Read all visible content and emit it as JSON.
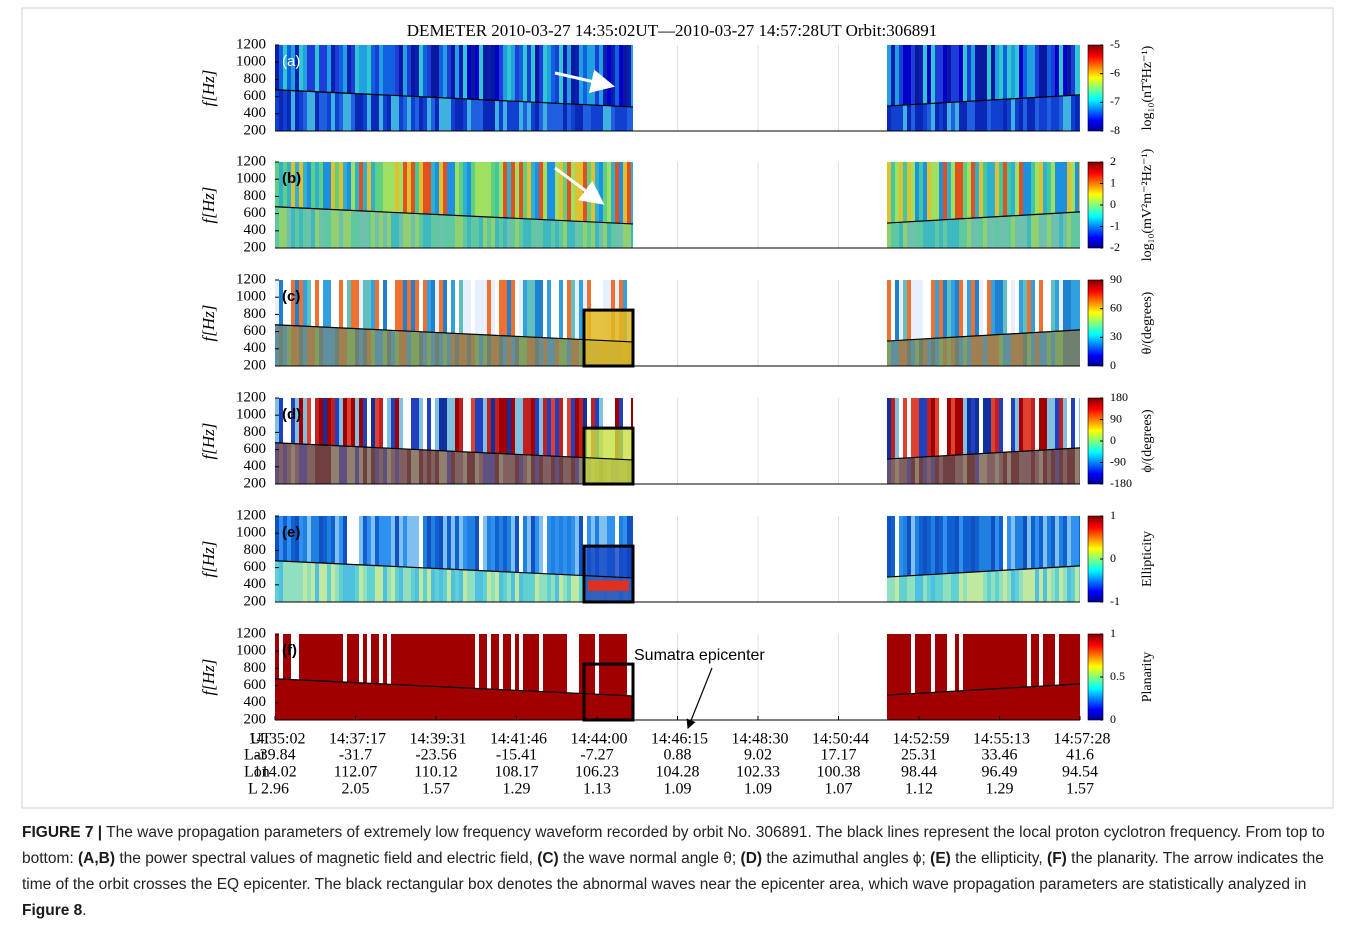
{
  "title": "DEMETER 2010-03-27 14:35:02UT—2010-03-27 14:57:28UT Orbit:306891",
  "y_axis": {
    "label": "f[Hz]",
    "ticks": [
      200,
      400,
      600,
      800,
      1000,
      1200
    ]
  },
  "panels": [
    {
      "label": "(a)",
      "colorbar_label": "log₁₀(nT²Hz⁻¹)",
      "colorbar_ticks": [
        -5,
        -6,
        -7,
        -8
      ]
    },
    {
      "label": "(b)",
      "colorbar_label": "log₁₀(mV²m⁻²Hz⁻¹)",
      "colorbar_ticks": [
        2,
        1,
        0,
        -1,
        -2
      ]
    },
    {
      "label": "(c)",
      "colorbar_label": "θ/(degrees)",
      "colorbar_ticks": [
        90,
        60,
        30,
        0
      ]
    },
    {
      "label": "(d)",
      "colorbar_label": "ϕ/(degrees)",
      "colorbar_ticks": [
        180,
        90,
        0,
        -90,
        -180
      ]
    },
    {
      "label": "(e)",
      "colorbar_label": "Ellipticity",
      "colorbar_ticks": [
        1,
        0,
        -1
      ]
    },
    {
      "label": "(f)",
      "colorbar_label": "Planarity",
      "colorbar_ticks": [
        1,
        0.5,
        0
      ]
    }
  ],
  "annotation": "Sumatra epicenter",
  "axis_table": {
    "row_labels": [
      "UT",
      "Lat",
      "Lon",
      "L"
    ],
    "rows": [
      [
        "14:35:02",
        "14:37:17",
        "14:39:31",
        "14:41:46",
        "14:44:00",
        "14:46:15",
        "14:48:30",
        "14:50:44",
        "14:52:59",
        "14:55:13",
        "14:57:28"
      ],
      [
        -39.84,
        -31.7,
        -23.56,
        -15.41,
        -7.27,
        0.88,
        9.02,
        17.17,
        25.31,
        33.46,
        41.6
      ],
      [
        114.02,
        112.07,
        110.12,
        108.17,
        106.23,
        104.28,
        102.33,
        100.38,
        98.44,
        96.49,
        94.54
      ],
      [
        2.96,
        2.05,
        1.57,
        1.29,
        1.13,
        1.09,
        1.09,
        1.07,
        1.12,
        1.29,
        1.57
      ]
    ]
  },
  "caption": [
    {
      "text": "FIGURE 7 |",
      "bold": true
    },
    {
      "text": " The wave propagation parameters of extremely low frequency waveform recorded by orbit No. 306891. The black lines represent the local proton cyclotron frequency. From top to bottom: ",
      "bold": false
    },
    {
      "text": "(A,B)",
      "bold": true
    },
    {
      "text": " the power spectral values of magnetic field and electric field, ",
      "bold": false
    },
    {
      "text": "(C)",
      "bold": true
    },
    {
      "text": " the wave normal angle θ; ",
      "bold": false
    },
    {
      "text": "(D)",
      "bold": true
    },
    {
      "text": " the azimuthal angles ϕ; ",
      "bold": false
    },
    {
      "text": "(E)",
      "bold": true
    },
    {
      "text": " the ellipticity, ",
      "bold": false
    },
    {
      "text": "(F)",
      "bold": true
    },
    {
      "text": " the planarity. The arrow indicates the time of the orbit crosses the EQ epicenter. The black rectangular box denotes the abnormal waves near the epicenter area, which wave propagation parameters are statistically analyzed in ",
      "bold": false
    },
    {
      "text": "Figure 8",
      "bold": true
    },
    {
      "text": ".",
      "bold": false
    }
  ]
}
